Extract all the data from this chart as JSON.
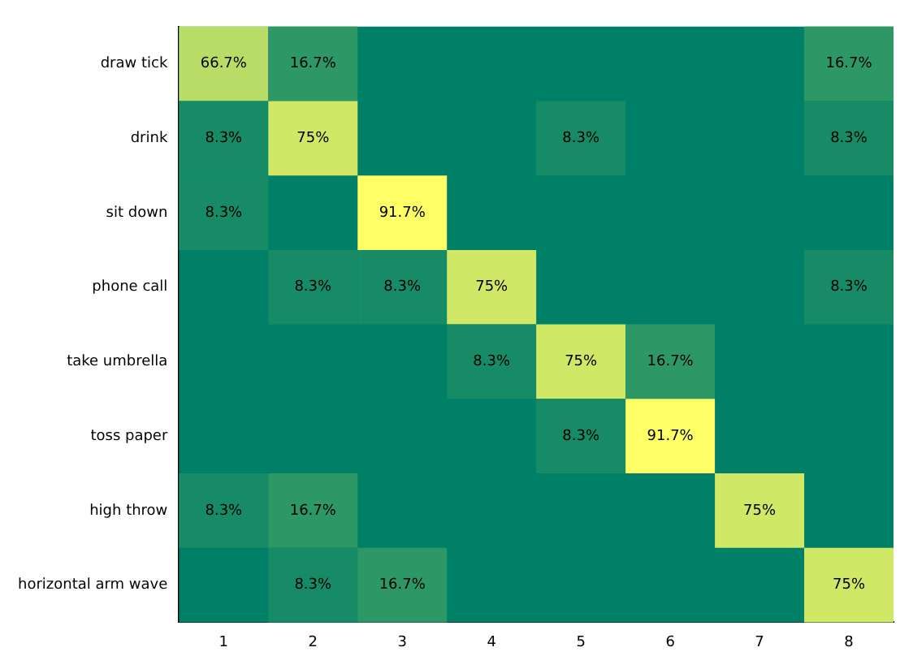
{
  "chart_data": {
    "type": "heatmap",
    "categories": [
      "1",
      "2",
      "3",
      "4",
      "5",
      "6",
      "7",
      "8"
    ],
    "y_categories": [
      "draw tick",
      "drink",
      "sit down",
      "phone call",
      "take umbrella",
      "toss paper",
      "high throw",
      "horizontal arm wave"
    ],
    "cells": [
      [
        66.7,
        16.7,
        null,
        null,
        null,
        null,
        null,
        16.7
      ],
      [
        8.3,
        75,
        null,
        null,
        8.3,
        null,
        null,
        8.3
      ],
      [
        8.3,
        null,
        91.7,
        null,
        null,
        null,
        null,
        null
      ],
      [
        null,
        8.3,
        8.3,
        75,
        null,
        null,
        null,
        8.3
      ],
      [
        null,
        null,
        null,
        8.3,
        75,
        16.7,
        null,
        null
      ],
      [
        null,
        null,
        null,
        null,
        8.3,
        91.7,
        null,
        null
      ],
      [
        8.3,
        16.7,
        null,
        null,
        null,
        null,
        75,
        null
      ],
      [
        null,
        8.3,
        16.7,
        null,
        null,
        null,
        null,
        75
      ]
    ],
    "cell_labels": [
      [
        "66.7%",
        "16.7%",
        null,
        null,
        null,
        null,
        null,
        "16.7%"
      ],
      [
        "8.3%",
        "75%",
        null,
        null,
        "8.3%",
        null,
        null,
        "8.3%"
      ],
      [
        "8.3%",
        null,
        "91.7%",
        null,
        null,
        null,
        null,
        null
      ],
      [
        null,
        "8.3%",
        "8.3%",
        "75%",
        null,
        null,
        null,
        "8.3%"
      ],
      [
        null,
        null,
        null,
        "8.3%",
        "75%",
        "16.7%",
        null,
        null
      ],
      [
        null,
        null,
        null,
        null,
        "8.3%",
        "91.7%",
        null,
        null
      ],
      [
        "8.3%",
        "16.7%",
        null,
        null,
        null,
        null,
        "75%",
        null
      ],
      [
        null,
        "8.3%",
        "16.7%",
        null,
        null,
        null,
        null,
        "75%"
      ]
    ]
  }
}
